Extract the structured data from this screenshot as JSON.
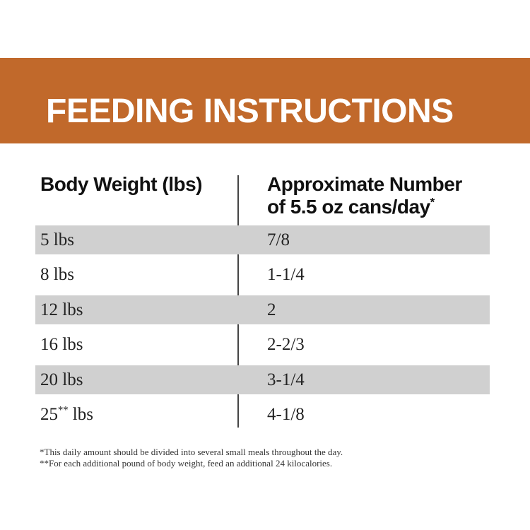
{
  "theme": {
    "accent_orange": "#c1692b",
    "row_shade_gray": "#d0d0d0",
    "divider_color": "#444444",
    "banner_text_color": "#ffffff",
    "background": "#ffffff"
  },
  "banner": {
    "title": "FEEDING INSTRUCTIONS"
  },
  "table": {
    "columns": {
      "col1_header": "Body Weight (lbs)",
      "col2_header_line1": "Approximate Number",
      "col2_header_line2": "of 5.5 oz cans/day",
      "col2_header_footnote_marker": "*"
    },
    "rows": [
      {
        "weight": "5",
        "weight_marker": "",
        "weight_unit": " lbs",
        "cans": "7/8",
        "shaded": true
      },
      {
        "weight": "8",
        "weight_marker": "",
        "weight_unit": " lbs",
        "cans": "1-1/4",
        "shaded": false
      },
      {
        "weight": "12",
        "weight_marker": "",
        "weight_unit": " lbs",
        "cans": "2",
        "shaded": true
      },
      {
        "weight": "16",
        "weight_marker": "",
        "weight_unit": " lbs",
        "cans": "2-2/3",
        "shaded": false
      },
      {
        "weight": "20",
        "weight_marker": "",
        "weight_unit": " lbs",
        "cans": "3-1/4",
        "shaded": true
      },
      {
        "weight": "25",
        "weight_marker": "**",
        "weight_unit": " lbs",
        "cans": "4-1/8",
        "shaded": false
      }
    ]
  },
  "footnotes": [
    "*This daily amount should be divided into several small meals throughout the day.",
    "**For each additional pound of body weight, feed an additional 24 kilocalories."
  ]
}
